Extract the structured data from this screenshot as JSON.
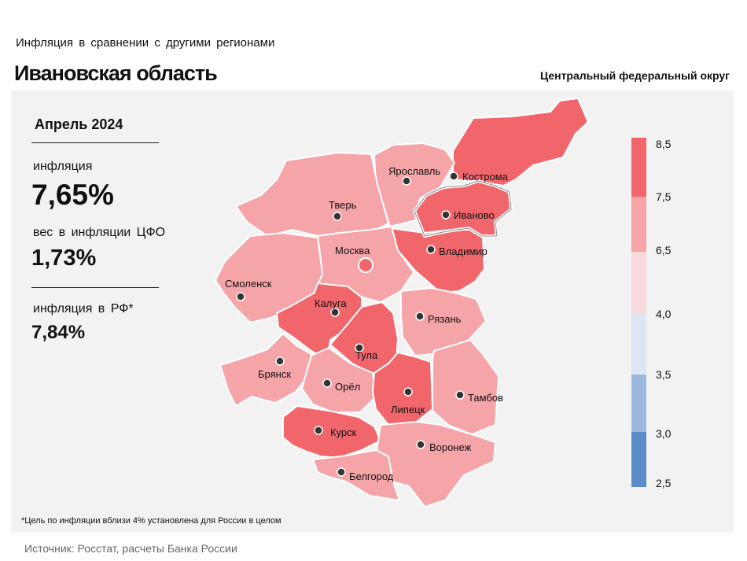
{
  "header": {
    "subtitle": "Инфляция  в сравнении  с другими  регионами",
    "title": "Ивановская область",
    "district": "Центральный федеральный округ"
  },
  "stats": {
    "period": "Апрель 2024",
    "inflation_label": "инфляция",
    "inflation_value": "7,65%",
    "weight_label": "вес в инфляции  ЦФО",
    "weight_value": "1,73%",
    "russia_label": "инфляция  в РФ*",
    "russia_value": "7,84%"
  },
  "footnote": "*Цель по инфляции вблизи 4% установлена для России в целом",
  "source": "Источник: Росстат, расчеты Банка России",
  "legend": {
    "ticks": [
      "8,5",
      "7,5",
      "6,5",
      "4,0",
      "3,5",
      "3,0",
      "2,5"
    ],
    "colors": [
      "#f0666b",
      "#f5a4a8",
      "#f8d9dc",
      "#dce6f4",
      "#9db8de",
      "#5b8cc9"
    ]
  },
  "regions": [
    {
      "name": "Кострома",
      "color": "#f0666b"
    },
    {
      "name": "Ярославль",
      "color": "#f5a4a8"
    },
    {
      "name": "Иваново",
      "color": "#f0666b"
    },
    {
      "name": "Тверь",
      "color": "#f5a4a8"
    },
    {
      "name": "Владимир",
      "color": "#f0666b"
    },
    {
      "name": "Москва",
      "color": "#f5a4a8"
    },
    {
      "name": "Смоленск",
      "color": "#f5a4a8"
    },
    {
      "name": "Калуга",
      "color": "#f0666b"
    },
    {
      "name": "Рязань",
      "color": "#f5a4a8"
    },
    {
      "name": "Тула",
      "color": "#f0666b"
    },
    {
      "name": "Брянск",
      "color": "#f5a4a8"
    },
    {
      "name": "Орёл",
      "color": "#f5a4a8"
    },
    {
      "name": "Липецк",
      "color": "#f0666b"
    },
    {
      "name": "Тамбов",
      "color": "#f5a4a8"
    },
    {
      "name": "Курск",
      "color": "#f0666b"
    },
    {
      "name": "Воронеж",
      "color": "#f5a4a8"
    },
    {
      "name": "Белгород",
      "color": "#f5a4a8"
    }
  ]
}
